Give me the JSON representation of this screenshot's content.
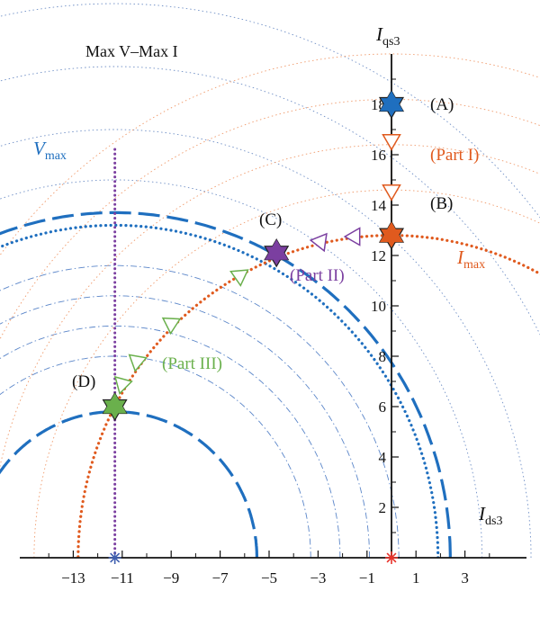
{
  "chart_data": {
    "type": "line",
    "title": "Max V–Max I",
    "xlabel_main": "I",
    "xlabel_sub": "ds3",
    "ylabel_main": "I",
    "ylabel_sub": "qs3",
    "xlim": [
      -14.5,
      5
    ],
    "ylim": [
      -0.7,
      19.9
    ],
    "x_ticks": [
      -13,
      -11,
      -9,
      -7,
      -5,
      -3,
      -1,
      1,
      3
    ],
    "x_tick_labels": [
      "−13",
      "−11",
      "−9",
      "−7",
      "−5",
      "−3",
      "−1",
      "1",
      "3"
    ],
    "y_ticks": [
      2,
      4,
      6,
      8,
      10,
      12,
      14,
      16,
      18
    ],
    "y_tick_labels": [
      "2",
      "4",
      "6",
      "8",
      "10",
      "12",
      "14",
      "16",
      "18"
    ],
    "center_point": [
      -11.3,
      0
    ],
    "origin_point": [
      0,
      0
    ],
    "curves": [
      {
        "name": "Vmax",
        "label_main": "V",
        "label_sub": "max",
        "type": "circle",
        "center": [
          -11.3,
          0
        ],
        "radius": 13.2,
        "color": "#1f6fbf",
        "style": "dotted-thick"
      },
      {
        "name": "Imax",
        "label_main": "I",
        "label_sub": "max",
        "type": "circle",
        "center": [
          0,
          0
        ],
        "radius": 12.8,
        "color": "#e05a1e",
        "style": "dotted-thick"
      },
      {
        "name": "voltage-ellipse-dashed-outer",
        "type": "circle",
        "center": [
          -11.3,
          0
        ],
        "radius": 13.7,
        "color": "#1f6fbf",
        "style": "long-dash"
      },
      {
        "name": "voltage-ellipse-dashed-inner",
        "type": "circle",
        "center": [
          -11.3,
          0
        ],
        "radius": 5.8,
        "color": "#1f6fbf",
        "style": "long-dash"
      }
    ],
    "vertical_line": {
      "x": -11.3,
      "y_from": 0,
      "y_to": 16.3,
      "color": "#7b3fa0"
    },
    "trajectory_segment": {
      "x": 0,
      "y_from": 12.8,
      "y_to": 18,
      "color": "#e05a1e"
    },
    "points": [
      {
        "label": "(A)",
        "x": 0,
        "y": 18,
        "color": "#1f6fbf"
      },
      {
        "label": "(B)",
        "x": 0,
        "y": 12.8,
        "color": "#e05a1e"
      },
      {
        "label": "(C)",
        "x": -4.7,
        "y": 12.1,
        "color": "#7b3fa0"
      },
      {
        "label": "(D)",
        "x": -11.3,
        "y": 6.0,
        "color": "#6ab04c"
      }
    ],
    "parts": [
      {
        "label": "(Part I)",
        "color": "#e05a1e"
      },
      {
        "label": "(Part II)",
        "color": "#7b3fa0"
      },
      {
        "label": "(Part III)",
        "color": "#6ab04c"
      }
    ],
    "grid": false,
    "legend": "none"
  }
}
